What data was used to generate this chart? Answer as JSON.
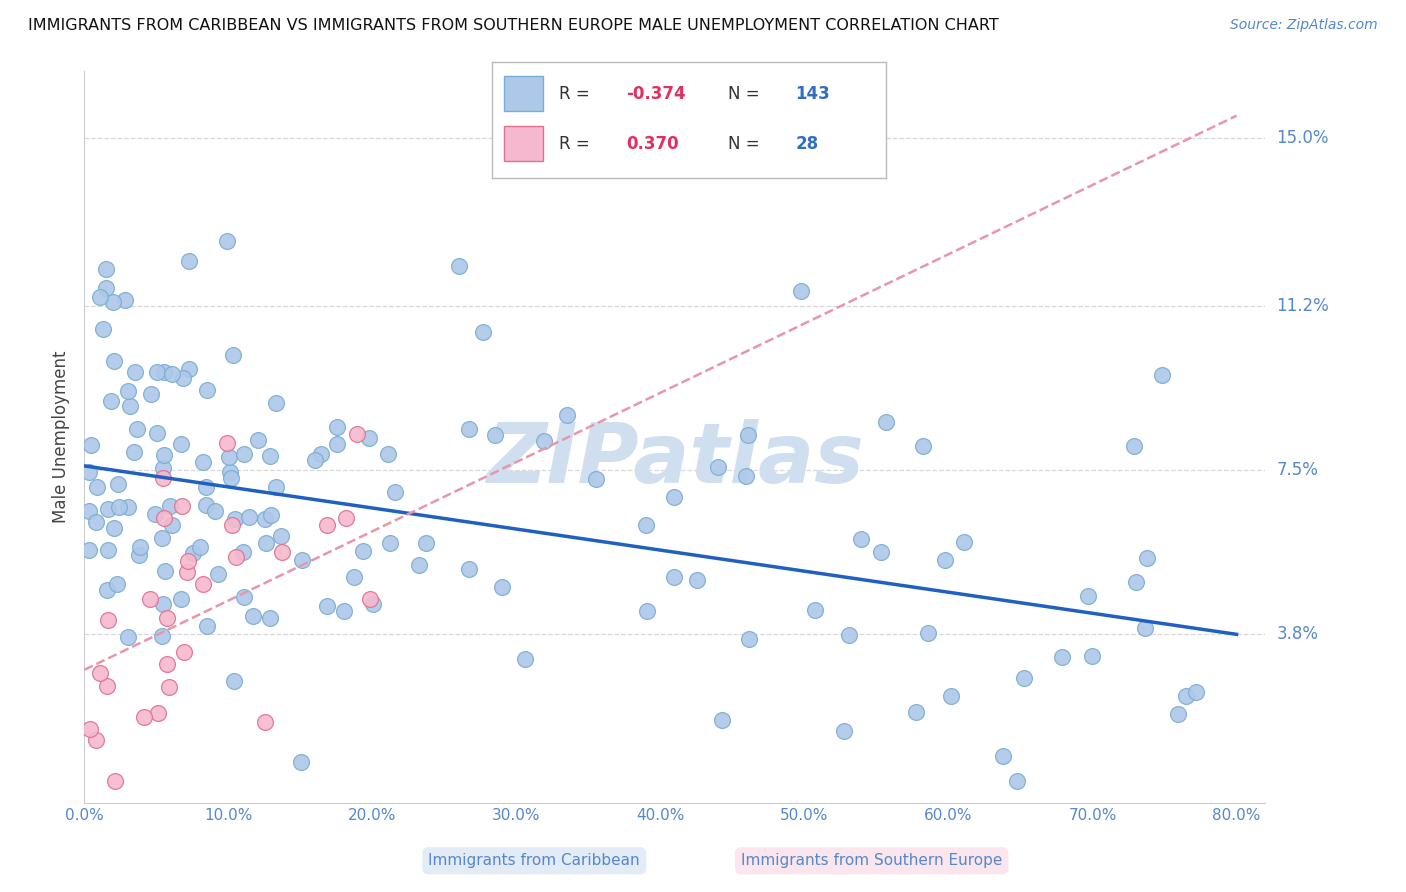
{
  "title": "IMMIGRANTS FROM CARIBBEAN VS IMMIGRANTS FROM SOUTHERN EUROPE MALE UNEMPLOYMENT CORRELATION CHART",
  "source": "Source: ZipAtlas.com",
  "ylabel": "Male Unemployment",
  "y_tick_positions": [
    3.8,
    7.5,
    11.2,
    15.0
  ],
  "y_tick_labels": [
    "3.8%",
    "7.5%",
    "11.2%",
    "15.0%"
  ],
  "x_tick_vals": [
    0,
    10,
    20,
    30,
    40,
    50,
    60,
    70,
    80
  ],
  "xlim": [
    0,
    82
  ],
  "ylim": [
    0,
    16.5
  ],
  "caribbean_R": -0.374,
  "caribbean_N": 143,
  "southern_europe_R": 0.37,
  "southern_europe_N": 28,
  "caribbean_color": "#adc8e8",
  "caribbean_edge_color": "#7aadd4",
  "southern_europe_color": "#f5b8ce",
  "southern_europe_edge_color": "#e07090",
  "trend_caribbean_color": "#2060c0",
  "trend_southern_europe_color": "#e896aa",
  "watermark_color": "#d0dff0",
  "background_color": "#ffffff",
  "legend_R_color": "#e03060",
  "legend_N_color": "#3070c0",
  "caribbean_label_color": "#adc8e8",
  "southern_europe_label_color": "#f5b8ce",
  "axis_label_color": "#5588cc",
  "grid_color": "#d8d8d8",
  "trend_c_x0": 0,
  "trend_c_y0": 7.6,
  "trend_c_x1": 80,
  "trend_c_y1": 3.8,
  "trend_s_x0": 0,
  "trend_s_y0": 3.0,
  "trend_s_x1": 80,
  "trend_s_y1": 15.5
}
